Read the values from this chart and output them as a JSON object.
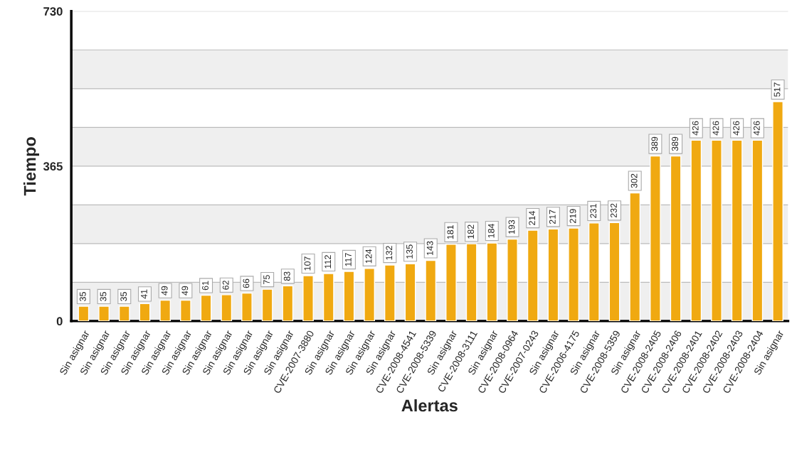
{
  "chart_data": {
    "type": "bar",
    "xlabel": "Alertas",
    "ylabel": "Tiempo",
    "categories": [
      "Sin asignar",
      "Sin asignar",
      "Sin asignar",
      "Sin asignar",
      "Sin asignar",
      "Sin asignar",
      "Sin asignar",
      "Sin asignar",
      "Sin asignar",
      "Sin asignar",
      "Sin asignar",
      "CVE-2007-3880",
      "Sin asignar",
      "Sin asignar",
      "Sin asignar",
      "Sin asignar",
      "CVE-2008-4541",
      "CVE-2008-5339",
      "Sin asignar",
      "CVE-2008-3111",
      "Sin asignar",
      "CVE-2008-0964",
      "CVE-2007-0243",
      "Sin asignar",
      "CVE-2006-4175",
      "Sin asignar",
      "CVE-2008-5359",
      "Sin asignar",
      "CVE-2008-2405",
      "CVE-2008-2406",
      "CVE-2008-2401",
      "CVE-2008-2402",
      "CVE-2008-2403",
      "CVE-2008-2404",
      "Sin asignar"
    ],
    "values": [
      35,
      35,
      35,
      41,
      49,
      49,
      61,
      62,
      66,
      75,
      83,
      107,
      112,
      117,
      124,
      132,
      135,
      143,
      181,
      182,
      184,
      193,
      214,
      217,
      219,
      231,
      232,
      302,
      389,
      389,
      426,
      426,
      426,
      426,
      517
    ],
    "color": "#f0a911",
    "data_labels": true,
    "ylim": [
      0,
      730
    ],
    "yticks": [
      0,
      {
        "value": 91.25,
        "label": null
      },
      {
        "value": 182.5,
        "label": null
      },
      {
        "value": 273.75,
        "label": null
      },
      365,
      {
        "value": 456.25,
        "label": null
      },
      {
        "value": 547.5,
        "label": null
      },
      {
        "value": 638.75,
        "label": null
      },
      730
    ],
    "grid": "y",
    "bands": [
      {
        "axis": "y",
        "from": 0,
        "to": 91.25,
        "color": "#efefef"
      },
      {
        "axis": "y",
        "from": 182.5,
        "to": 273.75,
        "color": "#efefef"
      },
      {
        "axis": "y",
        "from": 365,
        "to": 456.25,
        "color": "#efefef"
      },
      {
        "axis": "y",
        "from": 547.5,
        "to": 638.75,
        "color": "#efefef"
      }
    ]
  }
}
